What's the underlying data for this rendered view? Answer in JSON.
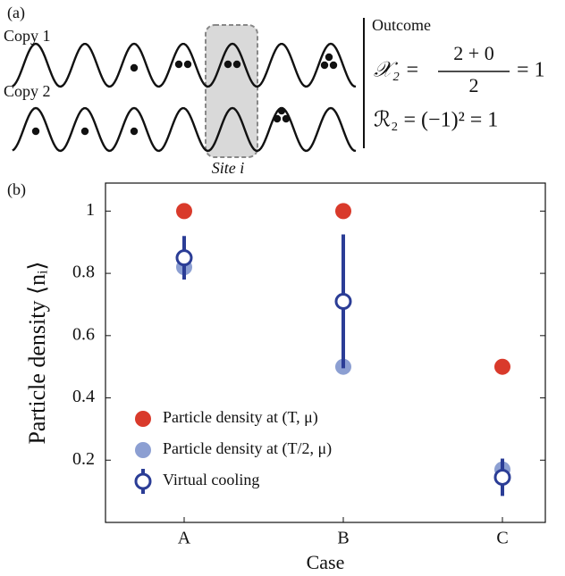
{
  "panel_a": {
    "label": "(a)",
    "copy_labels": [
      "Copy 1",
      "Copy 2"
    ],
    "site_label": "Site i",
    "outcome_title": "Outcome",
    "eq1": {
      "lhs": "𝒳₂ =",
      "numerator": "2 + 0",
      "denominator": "2",
      "rhs": "= 1"
    },
    "eq2": "ℛ₂ = (−1)² = 1"
  },
  "chart_data": {
    "type": "scatter",
    "panel_label": "(b)",
    "x_label": "Case",
    "y_label": "Particle density ⟨nᵢ⟩",
    "categories": [
      "A",
      "B",
      "C"
    ],
    "series": [
      {
        "name": "Particle density at (T, μ)",
        "color": "#d93a2b",
        "values": [
          1,
          1,
          0.5
        ]
      },
      {
        "name": "Particle density at (T/2, μ)",
        "color": "#8c9fd2",
        "values": [
          0.82,
          0.5,
          0.17
        ]
      },
      {
        "name": "Virtual cooling",
        "color": "#2b3d96",
        "values": [
          0.85,
          0.71,
          0.145
        ],
        "errors": [
          0.07,
          0.215,
          0.06
        ]
      }
    ],
    "ylim": [
      0,
      1.09
    ],
    "yticks": [
      0.2,
      0.4,
      0.6,
      0.8,
      1
    ],
    "legend": "lower left"
  }
}
